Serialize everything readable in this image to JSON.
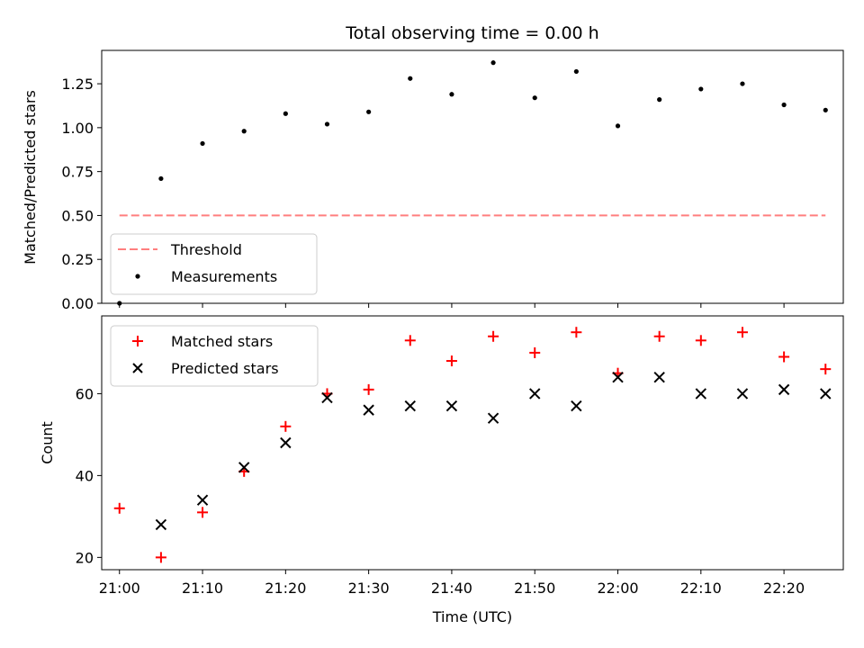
{
  "title": "Total observing time = 0.00 h",
  "colors": {
    "threshold": "#ff7f7f",
    "measurement": "#000000",
    "matched": "#ff0000",
    "predicted": "#000000"
  },
  "chart_data": [
    {
      "type": "scatter",
      "ylabel": "Matched/Predicted stars",
      "ylim": [
        0,
        1.44
      ],
      "yticks": [
        "0.00",
        "0.25",
        "0.50",
        "0.75",
        "1.00",
        "1.25"
      ],
      "x": [
        "21:00",
        "21:05",
        "21:10",
        "21:15",
        "21:20",
        "21:25",
        "21:30",
        "21:35",
        "21:40",
        "21:45",
        "21:50",
        "21:55",
        "22:00",
        "22:05",
        "22:10",
        "22:15",
        "22:20",
        "22:25"
      ],
      "series": [
        {
          "name": "Threshold",
          "style": "dashed-line",
          "values": [
            0.5,
            0.5
          ]
        },
        {
          "name": "Measurements",
          "style": "dot",
          "values": [
            0.0,
            0.71,
            0.91,
            0.98,
            1.08,
            1.02,
            1.09,
            1.28,
            1.19,
            1.37,
            1.17,
            1.32,
            1.01,
            1.16,
            1.22,
            1.25,
            1.13,
            1.1
          ]
        }
      ],
      "legend": "lower-left"
    },
    {
      "type": "scatter",
      "xlabel": "Time (UTC)",
      "ylabel": "Count",
      "ylim": [
        17,
        79
      ],
      "yticks": [
        "20",
        "40",
        "60"
      ],
      "xticks": [
        "21:00",
        "21:10",
        "21:20",
        "21:30",
        "21:40",
        "21:50",
        "22:00",
        "22:10",
        "22:20"
      ],
      "x": [
        "21:00",
        "21:05",
        "21:10",
        "21:15",
        "21:20",
        "21:25",
        "21:30",
        "21:35",
        "21:40",
        "21:45",
        "21:50",
        "21:55",
        "22:00",
        "22:05",
        "22:10",
        "22:15",
        "22:20",
        "22:25"
      ],
      "series": [
        {
          "name": "Matched stars",
          "marker": "plus",
          "values": [
            32,
            20,
            31,
            41,
            52,
            60,
            61,
            73,
            68,
            74,
            70,
            75,
            65,
            74,
            73,
            75,
            69,
            66
          ]
        },
        {
          "name": "Predicted stars",
          "marker": "x",
          "values": [
            null,
            28,
            34,
            42,
            48,
            59,
            56,
            57,
            57,
            54,
            60,
            57,
            64,
            64,
            60,
            60,
            61,
            60
          ]
        }
      ],
      "legend": "upper-left"
    }
  ]
}
